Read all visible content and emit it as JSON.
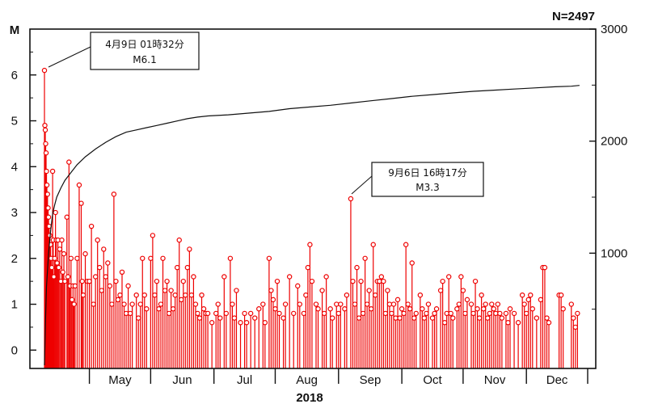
{
  "chart_data": {
    "type": "scatter",
    "n_label": "N=2497",
    "y_left_label": "M",
    "y_left_ticks": [
      "0",
      "1",
      "2",
      "3",
      "4",
      "5",
      "6"
    ],
    "y_left_range": [
      -0.4,
      7.0
    ],
    "y_right_ticks": [
      "1000",
      "2000",
      "3000"
    ],
    "y_right_range": [
      0,
      3000
    ],
    "year_label": "2018",
    "months": [
      "May",
      "Jun",
      "Jul",
      "Aug",
      "Sep",
      "Oct",
      "Nov",
      "Dec"
    ],
    "x_range_days": [
      0,
      266
    ],
    "annotations": [
      {
        "line1": "4月9日 01時32分",
        "line2": "M6.1",
        "day": 0,
        "mag": 6.1
      },
      {
        "line1": "9月6日 16時17分",
        "line2": "M3.3",
        "day": 150,
        "mag": 3.3
      }
    ],
    "series": [
      {
        "name": "magnitude",
        "marker": "circle-stem",
        "color": "#ee0000",
        "points": [
          [
            0.0,
            6.1
          ],
          [
            0.2,
            4.9
          ],
          [
            0.4,
            4.8
          ],
          [
            0.6,
            4.5
          ],
          [
            0.8,
            4.3
          ],
          [
            1.0,
            3.9
          ],
          [
            1.2,
            3.6
          ],
          [
            1.5,
            3.4
          ],
          [
            1.8,
            3.1
          ],
          [
            2.0,
            2.9
          ],
          [
            2.3,
            2.7
          ],
          [
            2.6,
            2.5
          ],
          [
            3.0,
            2.3
          ],
          [
            3.3,
            2.0
          ],
          [
            3.6,
            1.8
          ],
          [
            4.0,
            3.9
          ],
          [
            4.3,
            2.4
          ],
          [
            4.6,
            1.6
          ],
          [
            5.0,
            2.0
          ],
          [
            5.4,
            3.0
          ],
          [
            5.8,
            2.4
          ],
          [
            6.2,
            1.9
          ],
          [
            6.6,
            2.4
          ],
          [
            7.0,
            1.8
          ],
          [
            7.5,
            2.2
          ],
          [
            8.0,
            1.5
          ],
          [
            8.5,
            2.4
          ],
          [
            9.0,
            1.7
          ],
          [
            9.5,
            2.1
          ],
          [
            10.0,
            1.5
          ],
          [
            11.0,
            2.9
          ],
          [
            11.5,
            1.6
          ],
          [
            12.0,
            4.1
          ],
          [
            12.5,
            1.4
          ],
          [
            13.0,
            2.0
          ],
          [
            13.5,
            1.1
          ],
          [
            14.0,
            1.4
          ],
          [
            14.5,
            1.0
          ],
          [
            15.0,
            1.4
          ],
          [
            16.0,
            2.0
          ],
          [
            17.0,
            3.6
          ],
          [
            18.0,
            3.2
          ],
          [
            18.5,
            1.5
          ],
          [
            19.0,
            1.2
          ],
          [
            20.0,
            2.1
          ],
          [
            21.0,
            1.5
          ],
          [
            22.0,
            1.5
          ],
          [
            23.0,
            2.7
          ],
          [
            24.0,
            1.0
          ],
          [
            25.0,
            1.6
          ],
          [
            26.0,
            2.4
          ],
          [
            27.0,
            1.8
          ],
          [
            28.0,
            1.3
          ],
          [
            29.0,
            2.2
          ],
          [
            30.0,
            1.6
          ],
          [
            31.0,
            1.9
          ],
          [
            32.0,
            1.4
          ],
          [
            33.0,
            1.0
          ],
          [
            34.0,
            3.4
          ],
          [
            35.0,
            1.5
          ],
          [
            36.0,
            1.1
          ],
          [
            37.0,
            1.2
          ],
          [
            38.0,
            1.7
          ],
          [
            39.0,
            1.0
          ],
          [
            40.0,
            0.8
          ],
          [
            41.0,
            1.4
          ],
          [
            42.0,
            0.8
          ],
          [
            43.0,
            1.0
          ],
          [
            45.0,
            1.2
          ],
          [
            46.0,
            0.7
          ],
          [
            47.0,
            1.0
          ],
          [
            48.0,
            2.0
          ],
          [
            49.0,
            1.2
          ],
          [
            50.0,
            0.9
          ],
          [
            52.0,
            2.0
          ],
          [
            53.0,
            2.5
          ],
          [
            54.0,
            1.2
          ],
          [
            55.0,
            1.5
          ],
          [
            56.0,
            0.9
          ],
          [
            57.0,
            1.0
          ],
          [
            58.0,
            2.0
          ],
          [
            59.0,
            1.3
          ],
          [
            60.0,
            1.5
          ],
          [
            61.0,
            0.8
          ],
          [
            62.0,
            1.3
          ],
          [
            63.0,
            0.9
          ],
          [
            64.0,
            1.2
          ],
          [
            65.0,
            1.8
          ],
          [
            66.0,
            2.4
          ],
          [
            67.0,
            1.1
          ],
          [
            68.0,
            1.5
          ],
          [
            69.0,
            1.2
          ],
          [
            70.0,
            1.8
          ],
          [
            71.0,
            2.2
          ],
          [
            72.0,
            1.2
          ],
          [
            73.0,
            1.6
          ],
          [
            74.0,
            1.0
          ],
          [
            75.0,
            0.8
          ],
          [
            76.0,
            0.7
          ],
          [
            77.0,
            1.2
          ],
          [
            78.0,
            0.9
          ],
          [
            79.0,
            0.8
          ],
          [
            80.0,
            0.8
          ],
          [
            82.0,
            0.6
          ],
          [
            84.0,
            0.8
          ],
          [
            85.0,
            1.0
          ],
          [
            86.0,
            0.7
          ],
          [
            88.0,
            1.6
          ],
          [
            89.0,
            0.8
          ],
          [
            91.0,
            2.0
          ],
          [
            92.0,
            1.0
          ],
          [
            93.0,
            0.7
          ],
          [
            94.0,
            1.3
          ],
          [
            96.0,
            0.6
          ],
          [
            98.0,
            0.8
          ],
          [
            99.0,
            0.6
          ],
          [
            101.0,
            0.8
          ],
          [
            103.0,
            0.7
          ],
          [
            105.0,
            0.9
          ],
          [
            107.0,
            1.0
          ],
          [
            108.0,
            0.6
          ],
          [
            110.0,
            2.0
          ],
          [
            111.0,
            1.3
          ],
          [
            112.0,
            1.1
          ],
          [
            113.0,
            0.9
          ],
          [
            114.0,
            1.5
          ],
          [
            115.0,
            0.8
          ],
          [
            117.0,
            0.7
          ],
          [
            118.0,
            1.0
          ],
          [
            120.0,
            1.6
          ],
          [
            122.0,
            0.8
          ],
          [
            124.0,
            1.4
          ],
          [
            125.0,
            1.0
          ],
          [
            127.0,
            0.8
          ],
          [
            128.0,
            1.2
          ],
          [
            129.0,
            1.8
          ],
          [
            130.0,
            2.3
          ],
          [
            131.0,
            1.5
          ],
          [
            133.0,
            1.0
          ],
          [
            134.0,
            0.9
          ],
          [
            136.0,
            1.3
          ],
          [
            137.0,
            0.8
          ],
          [
            138.0,
            1.6
          ],
          [
            140.0,
            0.9
          ],
          [
            141.0,
            0.7
          ],
          [
            143.0,
            1.0
          ],
          [
            144.0,
            0.8
          ],
          [
            145.0,
            1.0
          ],
          [
            147.0,
            0.9
          ],
          [
            148.0,
            1.2
          ],
          [
            150.0,
            3.3
          ],
          [
            151.0,
            1.5
          ],
          [
            152.0,
            1.0
          ],
          [
            153.0,
            1.8
          ],
          [
            154.0,
            0.7
          ],
          [
            155.0,
            1.5
          ],
          [
            156.0,
            0.8
          ],
          [
            157.0,
            2.0
          ],
          [
            158.0,
            1.0
          ],
          [
            159.0,
            1.3
          ],
          [
            160.0,
            0.9
          ],
          [
            161.0,
            2.3
          ],
          [
            162.0,
            1.2
          ],
          [
            163.0,
            1.5
          ],
          [
            164.0,
            1.5
          ],
          [
            165.0,
            1.6
          ],
          [
            166.0,
            1.5
          ],
          [
            167.0,
            0.8
          ],
          [
            168.0,
            1.3
          ],
          [
            169.0,
            1.0
          ],
          [
            170.0,
            0.8
          ],
          [
            171.0,
            1.0
          ],
          [
            172.0,
            0.7
          ],
          [
            173.0,
            1.1
          ],
          [
            174.0,
            0.7
          ],
          [
            175.0,
            0.9
          ],
          [
            176.0,
            0.8
          ],
          [
            177.0,
            2.3
          ],
          [
            178.0,
            1.0
          ],
          [
            179.0,
            0.9
          ],
          [
            180.0,
            1.9
          ],
          [
            181.0,
            0.7
          ],
          [
            182.0,
            0.8
          ],
          [
            184.0,
            1.2
          ],
          [
            185.0,
            0.9
          ],
          [
            186.0,
            0.7
          ],
          [
            187.0,
            0.8
          ],
          [
            188.0,
            1.0
          ],
          [
            190.0,
            0.7
          ],
          [
            191.0,
            0.8
          ],
          [
            192.0,
            0.9
          ],
          [
            194.0,
            1.3
          ],
          [
            195.0,
            1.5
          ],
          [
            196.0,
            0.6
          ],
          [
            197.0,
            0.8
          ],
          [
            198.0,
            1.6
          ],
          [
            199.0,
            0.8
          ],
          [
            200.0,
            0.7
          ],
          [
            202.0,
            0.9
          ],
          [
            203.0,
            1.0
          ],
          [
            204.0,
            1.6
          ],
          [
            205.0,
            1.3
          ],
          [
            206.0,
            0.8
          ],
          [
            207.0,
            1.1
          ],
          [
            209.0,
            1.0
          ],
          [
            210.0,
            0.8
          ],
          [
            211.0,
            1.5
          ],
          [
            212.0,
            0.9
          ],
          [
            213.0,
            0.7
          ],
          [
            214.0,
            1.2
          ],
          [
            215.0,
            0.9
          ],
          [
            216.0,
            1.0
          ],
          [
            217.0,
            0.7
          ],
          [
            218.0,
            0.8
          ],
          [
            219.0,
            1.0
          ],
          [
            220.0,
            0.9
          ],
          [
            221.0,
            0.8
          ],
          [
            222.0,
            1.0
          ],
          [
            223.0,
            0.8
          ],
          [
            224.0,
            0.7
          ],
          [
            226.0,
            0.8
          ],
          [
            227.0,
            0.6
          ],
          [
            228.0,
            0.9
          ],
          [
            230.0,
            0.8
          ],
          [
            232.0,
            0.6
          ],
          [
            234.0,
            1.2
          ],
          [
            235.0,
            1.0
          ],
          [
            236.0,
            0.8
          ],
          [
            237.0,
            1.1
          ],
          [
            238.0,
            1.2
          ],
          [
            239.0,
            0.9
          ],
          [
            241.0,
            0.7
          ],
          [
            243.0,
            1.1
          ],
          [
            244.0,
            1.8
          ],
          [
            245.0,
            1.8
          ],
          [
            246.0,
            0.7
          ],
          [
            247.0,
            0.6
          ],
          [
            252.0,
            1.2
          ],
          [
            253.0,
            1.2
          ],
          [
            254.0,
            0.9
          ],
          [
            258.0,
            1.0
          ],
          [
            259.0,
            0.7
          ],
          [
            260.0,
            0.5
          ],
          [
            261.0,
            0.8
          ]
        ]
      },
      {
        "name": "cumulative",
        "axis": "right",
        "color": "#000000",
        "points": [
          [
            0,
            0
          ],
          [
            0.5,
            400
          ],
          [
            1,
            700
          ],
          [
            2,
            1000
          ],
          [
            3,
            1200
          ],
          [
            4,
            1350
          ],
          [
            5,
            1430
          ],
          [
            6,
            1500
          ],
          [
            8,
            1580
          ],
          [
            10,
            1650
          ],
          [
            13,
            1720
          ],
          [
            16,
            1790
          ],
          [
            20,
            1860
          ],
          [
            25,
            1930
          ],
          [
            30,
            1990
          ],
          [
            35,
            2040
          ],
          [
            40,
            2080
          ],
          [
            45,
            2100
          ],
          [
            50,
            2120
          ],
          [
            55,
            2140
          ],
          [
            60,
            2160
          ],
          [
            65,
            2180
          ],
          [
            70,
            2200
          ],
          [
            75,
            2215
          ],
          [
            80,
            2225
          ],
          [
            90,
            2235
          ],
          [
            100,
            2250
          ],
          [
            110,
            2265
          ],
          [
            120,
            2290
          ],
          [
            130,
            2305
          ],
          [
            140,
            2320
          ],
          [
            150,
            2340
          ],
          [
            160,
            2360
          ],
          [
            170,
            2380
          ],
          [
            180,
            2400
          ],
          [
            190,
            2415
          ],
          [
            200,
            2430
          ],
          [
            210,
            2445
          ],
          [
            220,
            2455
          ],
          [
            230,
            2465
          ],
          [
            240,
            2475
          ],
          [
            250,
            2485
          ],
          [
            258,
            2490
          ],
          [
            262,
            2497
          ]
        ]
      }
    ]
  }
}
